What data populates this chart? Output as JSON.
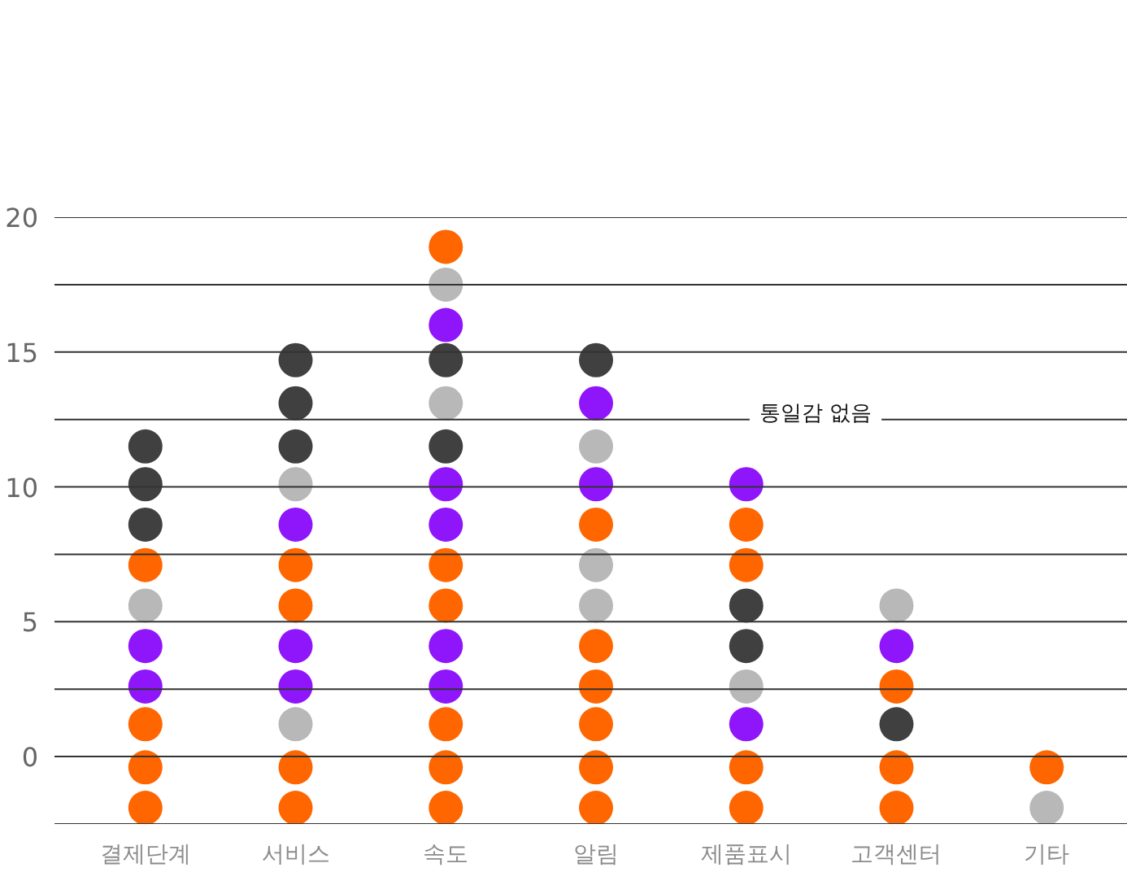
{
  "chart_data": {
    "type": "scatter",
    "categories": [
      "결제단계",
      "서비스",
      "속도",
      "알림",
      "제품표시",
      "고객센터",
      "기타"
    ],
    "ylim": [
      -2.5,
      20
    ],
    "yticks": [
      {
        "value": -2.5,
        "label": null
      },
      0,
      {
        "value": 2.5,
        "label": null
      },
      5,
      {
        "value": 7.5,
        "label": null
      },
      10,
      {
        "value": 12.5,
        "label": null
      },
      15,
      {
        "value": 17.5,
        "label": null
      },
      20
    ],
    "grid": "y",
    "marker": "circle",
    "annotations": [
      "통일감 없음"
    ],
    "series": [
      {
        "color": "#ff6600",
        "x": [
          "결제단계",
          "결제단계",
          "결제단계",
          "결제단계",
          "서비스",
          "서비스",
          "서비스",
          "서비스",
          "속도",
          "속도",
          "속도",
          "속도",
          "속도",
          "속도",
          "알림",
          "알림",
          "알림",
          "알림",
          "알림",
          "알림",
          "제품표시",
          "제품표시",
          "제품표시",
          "제품표시",
          "고객센터",
          "고객센터",
          "고객센터",
          "기타"
        ],
        "values": [
          -1.9,
          -0.4,
          1.2,
          7.1,
          -1.9,
          -0.4,
          5.6,
          7.1,
          -1.9,
          -0.4,
          1.2,
          5.6,
          7.1,
          18.9,
          -1.9,
          -0.4,
          1.2,
          2.6,
          4.1,
          8.6,
          -1.9,
          -0.4,
          7.1,
          8.6,
          -1.9,
          -0.4,
          2.6,
          -0.4
        ]
      },
      {
        "color": "#8f16fb",
        "x": [
          "결제단계",
          "결제단계",
          "서비스",
          "서비스",
          "서비스",
          "속도",
          "속도",
          "속도",
          "속도",
          "속도",
          "알림",
          "알림",
          "제품표시",
          "제품표시",
          "고객센터"
        ],
        "values": [
          2.6,
          4.1,
          2.6,
          4.1,
          8.6,
          2.6,
          4.1,
          8.6,
          10.1,
          16.0,
          10.1,
          13.1,
          1.2,
          10.1,
          4.1
        ]
      },
      {
        "color": "#b8b8b8",
        "x": [
          "결제단계",
          "서비스",
          "서비스",
          "속도",
          "속도",
          "알림",
          "알림",
          "알림",
          "제품표시",
          "고객센터",
          "기타"
        ],
        "values": [
          5.6,
          1.2,
          10.1,
          13.1,
          17.5,
          5.6,
          7.1,
          11.5,
          2.6,
          5.6,
          -1.9
        ]
      },
      {
        "color": "#404040",
        "x": [
          "결제단계",
          "결제단계",
          "결제단계",
          "서비스",
          "서비스",
          "서비스",
          "속도",
          "속도",
          "알림",
          "제품표시",
          "제품표시",
          "고객센터"
        ],
        "values": [
          8.6,
          10.1,
          11.5,
          11.5,
          13.1,
          14.7,
          11.5,
          14.7,
          14.7,
          4.1,
          5.6,
          1.2
        ]
      }
    ]
  }
}
